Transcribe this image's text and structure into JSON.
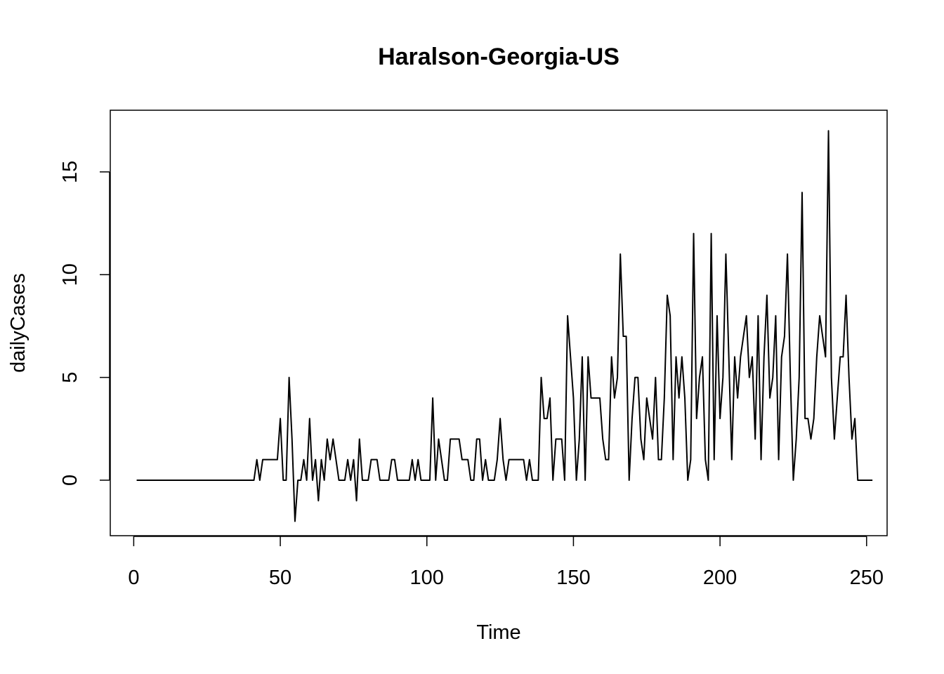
{
  "chart_data": {
    "type": "line",
    "title": "Haralson-Georgia-US",
    "xlabel": "Time",
    "ylabel": "dailyCases",
    "xlim": [
      -8,
      257
    ],
    "ylim": [
      -2.7,
      18.0
    ],
    "xticks": [
      0,
      50,
      100,
      150,
      200,
      250
    ],
    "xtick_labels": [
      "0",
      "50",
      "100",
      "150",
      "200",
      "250"
    ],
    "yticks": [
      0,
      5,
      10,
      15
    ],
    "ytick_labels": [
      "0",
      "5",
      "10",
      "15"
    ],
    "grid": false,
    "legend": "none",
    "series": [
      {
        "color": "#000000",
        "x_start": 1,
        "values": [
          0,
          0,
          0,
          0,
          0,
          0,
          0,
          0,
          0,
          0,
          0,
          0,
          0,
          0,
          0,
          0,
          0,
          0,
          0,
          0,
          0,
          0,
          0,
          0,
          0,
          0,
          0,
          0,
          0,
          0,
          0,
          0,
          0,
          0,
          0,
          0,
          0,
          0,
          0,
          0,
          0,
          1,
          0,
          1,
          1,
          1,
          1,
          1,
          1,
          3,
          0,
          0,
          5,
          2,
          -2,
          0,
          0,
          1,
          0,
          3,
          0,
          1,
          -1,
          1,
          0,
          2,
          1,
          2,
          1,
          0,
          0,
          0,
          1,
          0,
          1,
          -1,
          2,
          0,
          0,
          0,
          1,
          1,
          1,
          0,
          0,
          0,
          0,
          1,
          1,
          0,
          0,
          0,
          0,
          0,
          1,
          0,
          1,
          0,
          0,
          0,
          0,
          4,
          0,
          2,
          1,
          0,
          0,
          2,
          2,
          2,
          2,
          1,
          1,
          1,
          0,
          0,
          2,
          2,
          0,
          1,
          0,
          0,
          0,
          1,
          3,
          1,
          0,
          1,
          1,
          1,
          1,
          1,
          1,
          0,
          1,
          0,
          0,
          0,
          5,
          3,
          3,
          4,
          0,
          2,
          2,
          2,
          0,
          8,
          6,
          4,
          0,
          2,
          6,
          0,
          6,
          4,
          4,
          4,
          4,
          2,
          1,
          1,
          6,
          4,
          5,
          11,
          7,
          7,
          0,
          3,
          5,
          5,
          2,
          1,
          4,
          3,
          2,
          5,
          1,
          1,
          4,
          9,
          8,
          1,
          6,
          4,
          6,
          4,
          0,
          1,
          12,
          3,
          5,
          6,
          1,
          0,
          12,
          1,
          8,
          3,
          5,
          11,
          6,
          1,
          6,
          4,
          6,
          7,
          8,
          5,
          6,
          2,
          8,
          1,
          6,
          9,
          4,
          5,
          8,
          1,
          6,
          7,
          11,
          5,
          0,
          2,
          5,
          14,
          3,
          3,
          2,
          3,
          6,
          8,
          7,
          6,
          17,
          5,
          2,
          4,
          6,
          6,
          9,
          5,
          2,
          3,
          0,
          0,
          0,
          0,
          0,
          0
        ]
      }
    ]
  }
}
